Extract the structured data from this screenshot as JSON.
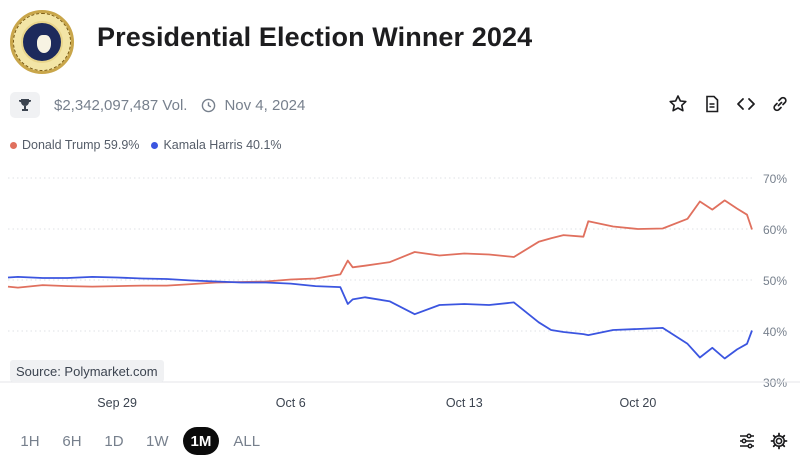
{
  "header": {
    "title": "Presidential Election Winner 2024",
    "volume": "$2,342,097,487 Vol.",
    "end_date": "Nov 4, 2024"
  },
  "legend": [
    {
      "label": "Donald Trump 59.9%",
      "color": "#e0705e"
    },
    {
      "label": "Kamala Harris 40.1%",
      "color": "#3b55e0"
    }
  ],
  "source_label": "Source: Polymarket.com",
  "ranges": [
    "1H",
    "6H",
    "1D",
    "1W",
    "1M",
    "ALL"
  ],
  "active_range": "1M",
  "icons": [
    "trophy-icon",
    "clock-icon",
    "star-icon",
    "document-icon",
    "embed-code-icon",
    "link-icon",
    "filter-sliders-icon",
    "gear-icon"
  ],
  "chart_data": {
    "type": "line",
    "title": "",
    "xlabel": "",
    "ylabel": "",
    "ylim": [
      30,
      70
    ],
    "y_ticks": [
      30,
      40,
      50,
      60,
      70
    ],
    "y_tick_labels": [
      "30%",
      "40%",
      "50%",
      "60%",
      "70%"
    ],
    "x_tick_labels": [
      {
        "label": "Sep 29",
        "x": 2
      },
      {
        "label": "Oct 6",
        "x": 9
      },
      {
        "label": "Oct 13",
        "x": 16
      },
      {
        "label": "Oct 20",
        "x": 23
      }
    ],
    "xlim": [
      -2.4,
      27.6
    ],
    "grid": "dotted horizontal",
    "series": [
      {
        "name": "Donald Trump",
        "color": "#e0705e",
        "x": [
          -2.4,
          -2,
          -1,
          0,
          1,
          2,
          3,
          4,
          5,
          6,
          7,
          8,
          9,
          10,
          11,
          11.3,
          11.5,
          12,
          13,
          14,
          15,
          16,
          17,
          18,
          19,
          19.5,
          20,
          20.8,
          21,
          22,
          23,
          24,
          25,
          25.5,
          26,
          26.5,
          27,
          27.4,
          27.6
        ],
        "values": [
          48.7,
          48.5,
          49,
          48.8,
          48.7,
          48.8,
          48.9,
          48.9,
          49.2,
          49.5,
          49.6,
          49.7,
          50.1,
          50.3,
          51.1,
          53.8,
          52.5,
          52.8,
          53.5,
          55.5,
          54.8,
          55.2,
          55,
          54.5,
          57.5,
          58.2,
          58.8,
          58.5,
          61.5,
          60.5,
          60,
          60.1,
          62,
          65.4,
          63.8,
          65.6,
          64,
          62.8,
          59.9
        ]
      },
      {
        "name": "Kamala Harris",
        "color": "#3b55e0",
        "x": [
          -2.4,
          -2,
          -1,
          0,
          1,
          2,
          3,
          4,
          5,
          6,
          7,
          8,
          9,
          10,
          11,
          11.3,
          11.5,
          12,
          13,
          14,
          15,
          16,
          17,
          18,
          19,
          19.5,
          20,
          20.8,
          21,
          22,
          23,
          24,
          25,
          25.5,
          26,
          26.5,
          27,
          27.4,
          27.6
        ],
        "values": [
          50.5,
          50.6,
          50.4,
          50.4,
          50.6,
          50.5,
          50.3,
          50.2,
          49.9,
          49.7,
          49.5,
          49.5,
          49.3,
          48.8,
          48.6,
          45.3,
          46.2,
          46.6,
          45.8,
          43.3,
          45.1,
          45.3,
          45.1,
          45.6,
          41.7,
          40.2,
          39.8,
          39.4,
          39.2,
          40.2,
          40.4,
          40.6,
          37.5,
          34.8,
          36.7,
          34.6,
          36.4,
          37.5,
          40.1
        ]
      }
    ]
  }
}
